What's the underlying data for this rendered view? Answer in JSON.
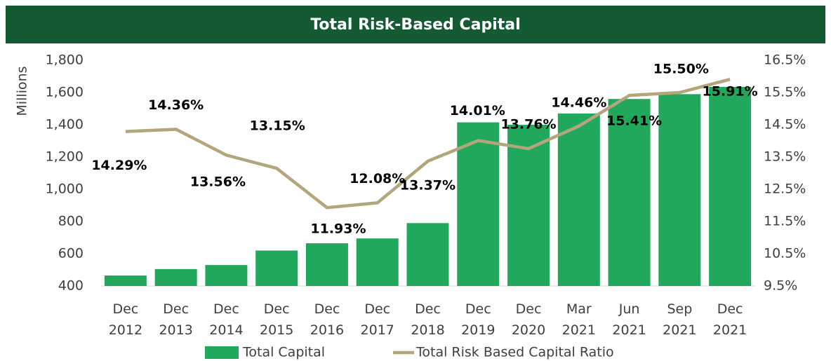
{
  "chart_data": {
    "type": "bar",
    "title": "Total Risk-Based Capital",
    "ylabel": "Millions",
    "categories": [
      "Dec 2012",
      "Dec 2013",
      "Dec 2014",
      "Dec 2015",
      "Dec 2016",
      "Dec 2017",
      "Dec 2018",
      "Dec 2019",
      "Dec 2020",
      "Mar 2021",
      "Jun 2021",
      "Sep 2021",
      "Dec 2021"
    ],
    "series": [
      {
        "name": "Total Capital",
        "type": "bar",
        "axis": "y",
        "color": "#22a85c",
        "values": [
          465,
          505,
          530,
          620,
          665,
          695,
          790,
          1415,
          1400,
          1470,
          1560,
          1590,
          1635
        ]
      },
      {
        "name": "Total Risk Based Capital Ratio",
        "type": "line",
        "axis": "y2",
        "color": "#b3a57c",
        "values": [
          14.29,
          14.36,
          13.56,
          13.15,
          11.93,
          12.08,
          13.37,
          14.01,
          13.76,
          14.46,
          15.41,
          15.5,
          15.91
        ],
        "value_labels": [
          "14.29%",
          "14.36%",
          "13.56%",
          "13.15%",
          "11.93%",
          "12.08%",
          "13.37%",
          "14.01%",
          "13.76%",
          "14.46%",
          "15.41%",
          "15.50%",
          "15.91%"
        ]
      }
    ],
    "ylim": [
      400,
      1800
    ],
    "yticks": [
      {
        "value": 400,
        "label": "400"
      },
      {
        "value": 600,
        "label": "600"
      },
      {
        "value": 800,
        "label": "800"
      },
      {
        "value": 1000,
        "label": "1,000"
      },
      {
        "value": 1200,
        "label": "1,200"
      },
      {
        "value": 1400,
        "label": "1,400"
      },
      {
        "value": 1600,
        "label": "1,600"
      },
      {
        "value": 1800,
        "label": "1,800"
      }
    ],
    "y2lim": [
      9.5,
      16.5
    ],
    "y2ticks": [
      {
        "value": 9.5,
        "label": "9.5%"
      },
      {
        "value": 10.5,
        "label": "10.5%"
      },
      {
        "value": 11.5,
        "label": "11.5%"
      },
      {
        "value": 12.5,
        "label": "12.5%"
      },
      {
        "value": 13.5,
        "label": "13.5%"
      },
      {
        "value": 14.5,
        "label": "14.5%"
      },
      {
        "value": 15.5,
        "label": "15.5%"
      },
      {
        "value": 16.5,
        "label": "16.5%"
      }
    ],
    "grid": false,
    "legend": "bottom"
  }
}
